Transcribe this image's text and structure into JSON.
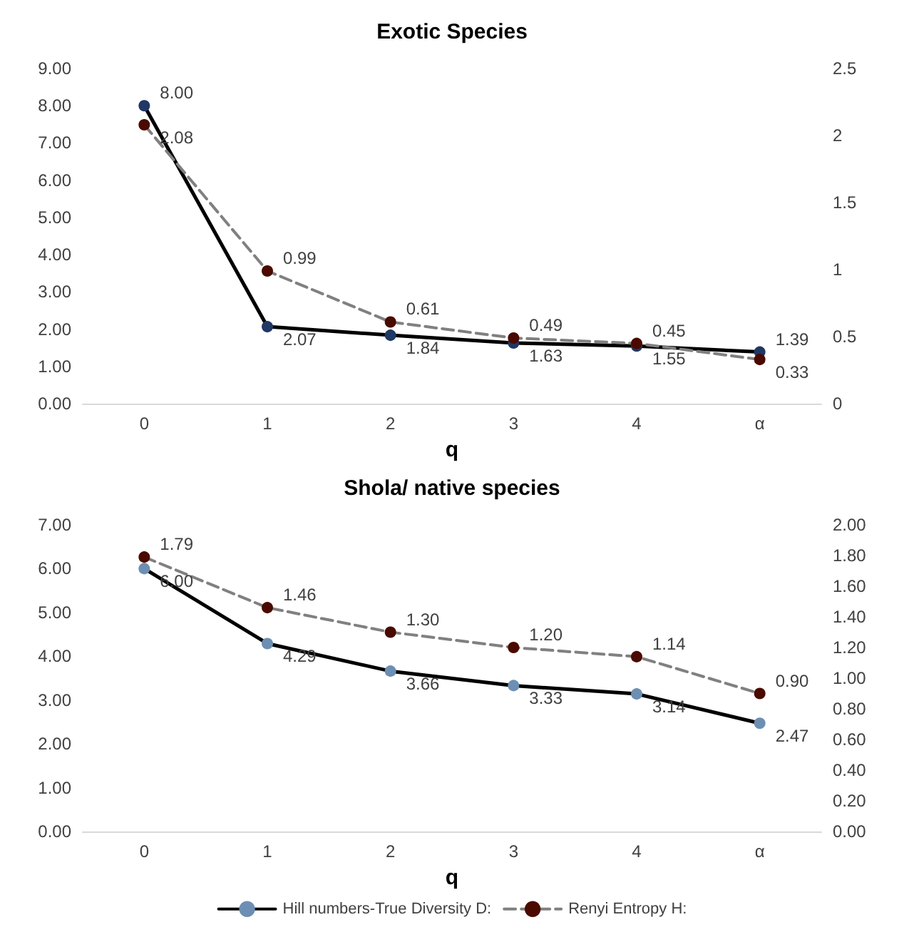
{
  "chart_data": [
    {
      "type": "line",
      "title": "Exotic Species",
      "xlabel": "q",
      "categories": [
        "0",
        "1",
        "2",
        "3",
        "4",
        "α"
      ],
      "series": [
        {
          "color": "#000000",
          "values": [
            8.0,
            2.07,
            1.84,
            1.63,
            1.55,
            1.39
          ],
          "value_labels": [
            "8.00",
            "2.07",
            "1.84",
            "1.63",
            "1.55",
            "1.39"
          ]
        },
        {
          "type": "line",
          "axis": "y2",
          "color": "#808080",
          "line_style": "dashed",
          "values": [
            2.08,
            0.99,
            0.61,
            0.49,
            0.45,
            0.33
          ],
          "value_labels": [
            "2.08",
            "0.99",
            "0.61",
            "0.49",
            "0.45",
            "0.33"
          ]
        }
      ],
      "ylim": [
        0,
        9
      ],
      "yticks": [
        {
          "value": 0,
          "label": "0.00"
        },
        {
          "value": 1,
          "label": "1.00"
        },
        {
          "value": 2,
          "label": "2.00"
        },
        {
          "value": 3,
          "label": "3.00"
        },
        {
          "value": 4,
          "label": "4.00"
        },
        {
          "value": 5,
          "label": "5.00"
        },
        {
          "value": 6,
          "label": "6.00"
        },
        {
          "value": 7,
          "label": "7.00"
        },
        {
          "value": 8,
          "label": "8.00"
        },
        {
          "value": 9,
          "label": "9.00"
        }
      ],
      "y2lim": [
        0,
        2.5
      ],
      "y2ticks": [
        0,
        0.5,
        1,
        1.5,
        2,
        2.5
      ],
      "marker": "circle",
      "data_labels": true,
      "grid": false,
      "legend": false
    },
    {
      "type": "line",
      "title": "Shola/ native species",
      "xlabel": "q",
      "categories": [
        "0",
        "1",
        "2",
        "3",
        "4",
        "α"
      ],
      "series": [
        {
          "name": "Hill numbers-True Diversity D:",
          "color": "#000000",
          "values": [
            6.0,
            4.29,
            3.66,
            3.33,
            3.14,
            2.47
          ],
          "value_labels": [
            "6.00",
            "4.29",
            "3.66",
            "3.33",
            "3.14",
            "2.47"
          ]
        },
        {
          "name": "Renyi Entropy H:",
          "axis": "y2",
          "color": "#808080",
          "line_style": "dashed",
          "values": [
            1.79,
            1.46,
            1.3,
            1.2,
            1.14,
            0.9
          ],
          "value_labels": [
            "1.79",
            "1.46",
            "1.30",
            "1.20",
            "1.14",
            "0.90"
          ]
        }
      ],
      "ylim": [
        0,
        7
      ],
      "yticks": [
        {
          "value": 0,
          "label": "0.00"
        },
        {
          "value": 1,
          "label": "1.00"
        },
        {
          "value": 2,
          "label": "2.00"
        },
        {
          "value": 3,
          "label": "3.00"
        },
        {
          "value": 4,
          "label": "4.00"
        },
        {
          "value": 5,
          "label": "5.00"
        },
        {
          "value": 6,
          "label": "6.00"
        },
        {
          "value": 7,
          "label": "7.00"
        }
      ],
      "y2lim": [
        0,
        2
      ],
      "y2ticks": [
        {
          "value": 0,
          "label": "0.00"
        },
        {
          "value": 0.2,
          "label": "0.20"
        },
        {
          "value": 0.4,
          "label": "0.40"
        },
        {
          "value": 0.6,
          "label": "0.60"
        },
        {
          "value": 0.8,
          "label": "0.80"
        },
        {
          "value": 1,
          "label": "1.00"
        },
        {
          "value": 1.2,
          "label": "1.20"
        },
        {
          "value": 1.4,
          "label": "1.40"
        },
        {
          "value": 1.6,
          "label": "1.60"
        },
        {
          "value": 1.8,
          "label": "1.80"
        },
        {
          "value": 2,
          "label": "2.00"
        }
      ],
      "marker": "circle",
      "data_labels": true,
      "grid": false,
      "legend": "bottom"
    }
  ]
}
